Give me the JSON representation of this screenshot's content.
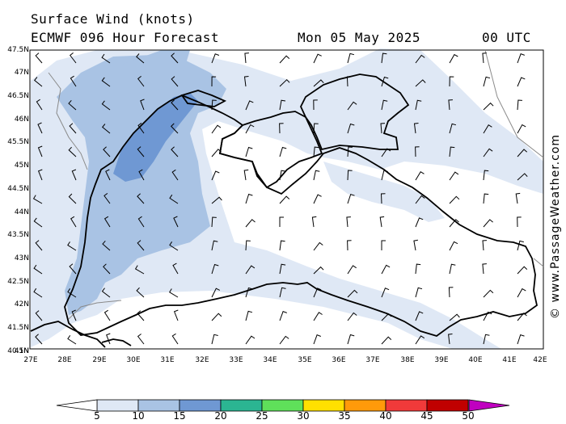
{
  "title": {
    "line1": "Surface Wind (knots)",
    "model": "ECMWF 096 Hour Forecast",
    "date": "Mon 05 May 2025",
    "time": "00 UTC"
  },
  "credit": "© www.PassageWeather.com",
  "lat_labels": [
    "47.5N",
    "47N",
    "46.5N",
    "46N",
    "45.5N",
    "45N",
    "44.5N",
    "44N",
    "43.5N",
    "43N",
    "42.5N",
    "42N",
    "41.5N",
    "41N",
    "40.5N"
  ],
  "lon_labels": [
    "27E",
    "28E",
    "29E",
    "30E",
    "31E",
    "32E",
    "33E",
    "34E",
    "35E",
    "36E",
    "37E",
    "38E",
    "39E",
    "40E",
    "41E",
    "42E"
  ],
  "colorbar": {
    "labels": [
      "5",
      "10",
      "15",
      "20",
      "25",
      "30",
      "35",
      "40",
      "45",
      "50"
    ],
    "colors": [
      "#dfe8f5",
      "#a9c3e4",
      "#6f98d3",
      "#2bb592",
      "#5fe05a",
      "#ffe000",
      "#ff9a0a",
      "#f03a3a",
      "#c00000",
      "#c000c0"
    ]
  },
  "map_colors": {
    "sea": "#ffffff",
    "wind_5_10": "#dfe8f5",
    "wind_10_15": "#a9c3e4",
    "wind_15_20": "#6f98d3",
    "coast": "#000000",
    "border": "#8a8a8a"
  }
}
